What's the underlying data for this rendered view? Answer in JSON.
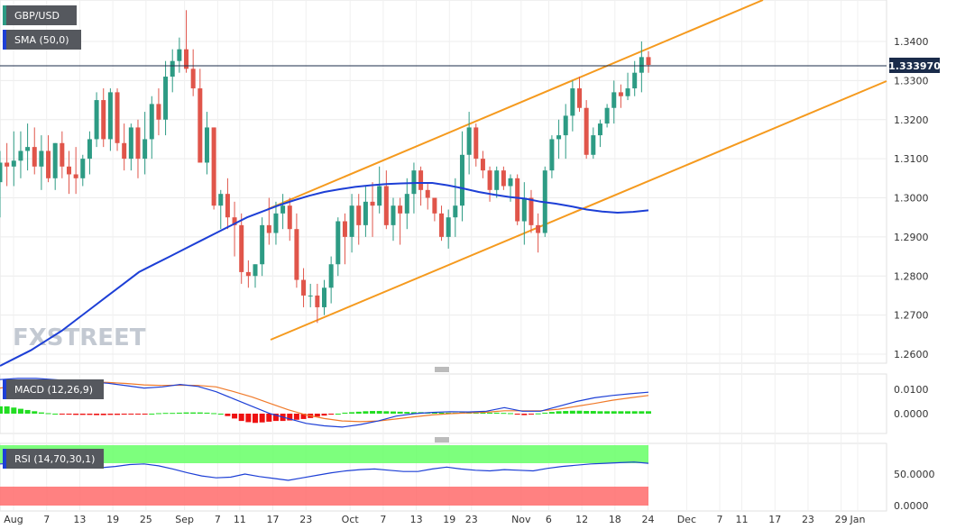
{
  "chart_data": {
    "type": "candlestick",
    "legend": {
      "symbol": "GBP/USD",
      "sma_label": "SMA (50,0)",
      "macd_label": "MACD (12,26,9)",
      "rsi_label": "RSI (14,70,30,1)"
    },
    "last_price": "1.333970",
    "watermark": "FXSTREET",
    "price_axis": {
      "ticks": [
        "1.3400",
        "1.3300",
        "1.3200",
        "1.3100",
        "1.3000",
        "1.2900",
        "1.2800",
        "1.2700",
        "1.2600"
      ],
      "values": [
        1.34,
        1.33,
        1.32,
        1.31,
        1.3,
        1.29,
        1.28,
        1.27,
        1.26
      ]
    },
    "macd_axis": {
      "ticks": [
        "0.0100",
        "0.0000"
      ],
      "values": [
        0.01,
        0.0
      ]
    },
    "rsi_axis": {
      "ticks": [
        "50.0000",
        "0.0000"
      ],
      "values": [
        50,
        0
      ]
    },
    "x_axis": {
      "labels": [
        "Aug",
        "7",
        "13",
        "19",
        "25",
        "Sep",
        "7",
        "11",
        "17",
        "23",
        "Oct",
        "7",
        "13",
        "19",
        "23",
        "Nov",
        "6",
        "12",
        "18",
        "24",
        "Dec",
        "7",
        "11",
        "17",
        "23",
        "29",
        "Jan"
      ],
      "date": [
        "2020-08-01",
        "2020-08-07",
        "2020-08-13",
        "2020-08-19",
        "2020-08-25",
        "2020-09-01",
        "2020-09-07",
        "2020-09-11",
        "2020-09-17",
        "2020-09-23",
        "2020-10-01",
        "2020-10-07",
        "2020-10-13",
        "2020-10-19",
        "2020-10-23",
        "2020-11-01",
        "2020-11-06",
        "2020-11-12",
        "2020-11-18",
        "2020-11-24",
        "2020-12-01",
        "2020-12-07",
        "2020-12-11",
        "2020-12-17",
        "2020-12-23",
        "2020-12-29",
        "2021-01-01"
      ]
    },
    "candles": {
      "o": [
        1.304,
        1.309,
        1.308,
        1.3095,
        1.312,
        1.313,
        1.308,
        1.312,
        1.305,
        1.314,
        1.308,
        1.306,
        1.305,
        1.31,
        1.315,
        1.325,
        1.315,
        1.327,
        1.314,
        1.31,
        1.318,
        1.31,
        1.315,
        1.324,
        1.32,
        1.331,
        1.335,
        1.338,
        1.333,
        1.328,
        1.309,
        1.318,
        1.298,
        1.301,
        1.295,
        1.293,
        1.281,
        1.28,
        1.283,
        1.293,
        1.291,
        1.296,
        1.298,
        1.292,
        1.279,
        1.275,
        1.275,
        1.272,
        1.277,
        1.283,
        1.294,
        1.29,
        1.298,
        1.293,
        1.299,
        1.298,
        1.303,
        1.293,
        1.298,
        1.296,
        1.301,
        1.307,
        1.302,
        1.3,
        1.296,
        1.29,
        1.295,
        1.298,
        1.311,
        1.318,
        1.31,
        1.307,
        1.302,
        1.307,
        1.303,
        1.305,
        1.294,
        1.3,
        1.293,
        1.291,
        1.307,
        1.315,
        1.316,
        1.321,
        1.328,
        1.323,
        1.311,
        1.316,
        1.319,
        1.323,
        1.327,
        1.326,
        1.328,
        1.332,
        1.336
      ],
      "h": [
        1.312,
        1.314,
        1.317,
        1.317,
        1.319,
        1.318,
        1.316,
        1.316,
        1.314,
        1.317,
        1.312,
        1.313,
        1.311,
        1.317,
        1.327,
        1.328,
        1.328,
        1.328,
        1.319,
        1.319,
        1.32,
        1.322,
        1.326,
        1.328,
        1.335,
        1.338,
        1.341,
        1.348,
        1.338,
        1.333,
        1.322,
        1.318,
        1.302,
        1.305,
        1.299,
        1.296,
        1.284,
        1.283,
        1.295,
        1.3,
        1.299,
        1.301,
        1.3,
        1.296,
        1.282,
        1.278,
        1.278,
        1.279,
        1.285,
        1.295,
        1.296,
        1.301,
        1.301,
        1.303,
        1.304,
        1.308,
        1.307,
        1.3,
        1.3,
        1.305,
        1.309,
        1.308,
        1.304,
        1.299,
        1.298,
        1.297,
        1.305,
        1.317,
        1.322,
        1.319,
        1.312,
        1.308,
        1.308,
        1.308,
        1.306,
        1.306,
        1.304,
        1.302,
        1.296,
        1.308,
        1.316,
        1.32,
        1.324,
        1.33,
        1.331,
        1.325,
        1.318,
        1.32,
        1.324,
        1.33,
        1.329,
        1.332,
        1.335,
        1.34,
        1.3375
      ],
      "l": [
        1.295,
        1.303,
        1.303,
        1.305,
        1.307,
        1.306,
        1.302,
        1.304,
        1.302,
        1.305,
        1.301,
        1.301,
        1.303,
        1.306,
        1.313,
        1.313,
        1.312,
        1.312,
        1.307,
        1.307,
        1.305,
        1.306,
        1.31,
        1.316,
        1.316,
        1.327,
        1.332,
        1.332,
        1.326,
        1.315,
        1.306,
        1.297,
        1.292,
        1.292,
        1.285,
        1.278,
        1.277,
        1.277,
        1.28,
        1.288,
        1.288,
        1.292,
        1.289,
        1.277,
        1.272,
        1.272,
        1.268,
        1.27,
        1.273,
        1.28,
        1.283,
        1.286,
        1.288,
        1.29,
        1.29,
        1.296,
        1.292,
        1.289,
        1.288,
        1.292,
        1.296,
        1.298,
        1.297,
        1.294,
        1.289,
        1.287,
        1.29,
        1.294,
        1.306,
        1.308,
        1.305,
        1.299,
        1.3,
        1.302,
        1.299,
        1.293,
        1.288,
        1.291,
        1.286,
        1.29,
        1.305,
        1.31,
        1.31,
        1.317,
        1.322,
        1.31,
        1.31,
        1.313,
        1.318,
        1.319,
        1.323,
        1.325,
        1.326,
        1.327,
        1.332
      ],
      "c": [
        1.309,
        1.308,
        1.3095,
        1.312,
        1.313,
        1.308,
        1.312,
        1.305,
        1.314,
        1.308,
        1.306,
        1.305,
        1.31,
        1.315,
        1.325,
        1.315,
        1.327,
        1.314,
        1.31,
        1.318,
        1.31,
        1.315,
        1.324,
        1.32,
        1.331,
        1.335,
        1.338,
        1.333,
        1.328,
        1.309,
        1.318,
        1.298,
        1.301,
        1.295,
        1.293,
        1.281,
        1.28,
        1.283,
        1.293,
        1.291,
        1.296,
        1.298,
        1.292,
        1.279,
        1.275,
        1.275,
        1.272,
        1.277,
        1.283,
        1.294,
        1.29,
        1.298,
        1.293,
        1.299,
        1.298,
        1.303,
        1.293,
        1.298,
        1.296,
        1.301,
        1.307,
        1.302,
        1.3,
        1.296,
        1.29,
        1.295,
        1.298,
        1.311,
        1.318,
        1.31,
        1.307,
        1.302,
        1.307,
        1.303,
        1.305,
        1.294,
        1.3,
        1.293,
        1.291,
        1.307,
        1.315,
        1.316,
        1.321,
        1.328,
        1.323,
        1.311,
        1.316,
        1.319,
        1.323,
        1.327,
        1.326,
        1.328,
        1.332,
        1.336,
        1.334
      ]
    },
    "sma50": [
      1.257,
      1.259,
      1.261,
      1.2635,
      1.266,
      1.269,
      1.272,
      1.275,
      1.278,
      1.281,
      1.283,
      1.285,
      1.287,
      1.289,
      1.291,
      1.293,
      1.295,
      1.2965,
      1.298,
      1.2993,
      1.3005,
      1.3015,
      1.3022,
      1.3028,
      1.3032,
      1.3035,
      1.3037,
      1.3038,
      1.3038,
      1.3032,
      1.3024,
      1.3015,
      1.3008,
      1.3002,
      1.2998,
      1.299,
      1.2985,
      1.2978,
      1.297,
      1.2965,
      1.2962,
      1.2964,
      1.2968
    ],
    "macd": {
      "macd": [
        0.014,
        0.0145,
        0.0145,
        0.014,
        0.0135,
        0.013,
        0.0125,
        0.0115,
        0.0105,
        0.011,
        0.012,
        0.0112,
        0.009,
        0.006,
        0.003,
        0.0,
        -0.002,
        -0.004,
        -0.005,
        -0.0055,
        -0.0045,
        -0.003,
        -0.001,
        0.0,
        0.0005,
        0.0008,
        0.0007,
        0.001,
        0.0025,
        0.001,
        0.001,
        0.003,
        0.005,
        0.0065,
        0.0075,
        0.0082,
        0.0088
      ],
      "signal": [
        0.0105,
        0.0115,
        0.0125,
        0.013,
        0.013,
        0.013,
        0.0128,
        0.0124,
        0.0118,
        0.0116,
        0.0117,
        0.0116,
        0.011,
        0.009,
        0.0068,
        0.0042,
        0.0016,
        -0.0005,
        -0.002,
        -0.003,
        -0.0033,
        -0.003,
        -0.0022,
        -0.0013,
        -0.0005,
        0.0,
        0.0003,
        0.0006,
        0.0012,
        0.0012,
        0.0012,
        0.0018,
        0.003,
        0.0042,
        0.0055,
        0.0065,
        0.0075
      ],
      "hist": [
        0.003,
        0.003,
        0.0025,
        0.002,
        0.0015,
        0.001,
        0.0005,
        0.0002,
        0.0,
        -0.0003,
        -0.0004,
        -0.0005,
        -0.0005,
        -0.0005,
        -0.0006,
        -0.0006,
        -0.0005,
        -0.0005,
        -0.0004,
        -0.0003,
        -0.0002,
        -0.0001,
        0.0,
        0.0002,
        0.0003,
        0.0003,
        0.0004,
        0.0005,
        0.0005,
        0.0005,
        0.0004,
        0.0002,
        0.0,
        -0.001,
        -0.002,
        -0.003,
        -0.0035,
        -0.0038,
        -0.0036,
        -0.0033,
        -0.003,
        -0.003,
        -0.0028,
        -0.0025,
        -0.0022,
        -0.0018,
        -0.0012,
        -0.0008,
        -0.0004,
        0.0,
        0.0004,
        0.0006,
        0.0008,
        0.001,
        0.0011,
        0.0011,
        0.001,
        0.0009,
        0.0008,
        0.0007,
        0.0006,
        0.0006,
        0.0005,
        0.0005,
        0.0004,
        0.0004,
        0.0004,
        0.0005,
        0.0005,
        0.0005,
        0.0004,
        0.0004,
        0.0004,
        0.0003,
        0.0002,
        -0.0004,
        -0.0006,
        -0.0003,
        0.0001,
        0.0004,
        0.0007,
        0.001,
        0.0011,
        0.0012,
        0.0012,
        0.0011,
        0.0011,
        0.001,
        0.001,
        0.001,
        0.001,
        0.001,
        0.001,
        0.001,
        0.001
      ]
    },
    "rsi": [
      66,
      67,
      66,
      64,
      63,
      62,
      61,
      60,
      62,
      65,
      66,
      63,
      58,
      52,
      47,
      44,
      45,
      50,
      46,
      43,
      40,
      44,
      48,
      52,
      55,
      57,
      58,
      56,
      54,
      54,
      58,
      61,
      58,
      56,
      55,
      57,
      56,
      55,
      59,
      62,
      64,
      66,
      67,
      68,
      69,
      67
    ]
  }
}
